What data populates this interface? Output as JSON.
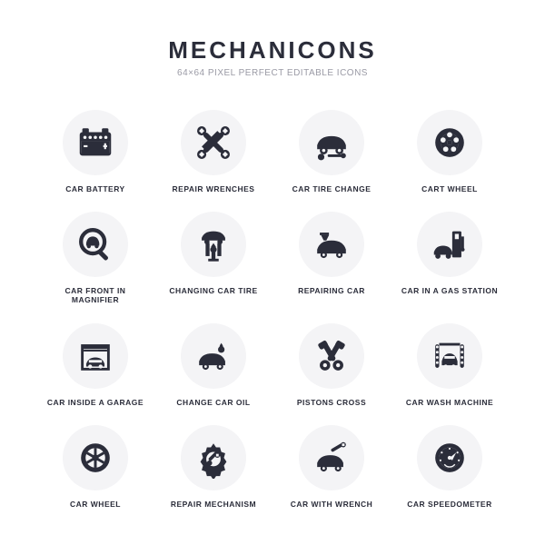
{
  "header": {
    "title": "MECHANICONS",
    "subtitle": "64×64 PIXEL PERFECT EDITABLE ICONS"
  },
  "palette": {
    "icon_color": "#2b2d3a",
    "circle_bg": "#f4f4f6",
    "text_color": "#2b2d3a",
    "subtitle_color": "#9a9aa5"
  },
  "grid": {
    "cols": 4,
    "rows": 4,
    "items": [
      {
        "id": "car-battery",
        "label": "CAR BATTERY"
      },
      {
        "id": "repair-wrenches",
        "label": "REPAIR WRENCHES"
      },
      {
        "id": "car-tire-change",
        "label": "CAR TIRE CHANGE"
      },
      {
        "id": "cart-wheel",
        "label": "CART WHEEL"
      },
      {
        "id": "car-front-in-magnifier",
        "label": "CAR FRONT IN MAGNIFIER"
      },
      {
        "id": "changing-car-tire",
        "label": "CHANGING CAR TIRE"
      },
      {
        "id": "repairing-car",
        "label": "REPAIRING CAR"
      },
      {
        "id": "car-in-a-gas-station",
        "label": "CAR IN A GAS STATION"
      },
      {
        "id": "car-inside-a-garage",
        "label": "CAR INSIDE A GARAGE"
      },
      {
        "id": "change-car-oil",
        "label": "CHANGE CAR OIL"
      },
      {
        "id": "pistons-cross",
        "label": "PISTONS CROSS"
      },
      {
        "id": "car-wash-machine",
        "label": "CAR WASH MACHINE"
      },
      {
        "id": "car-wheel",
        "label": "CAR WHEEL"
      },
      {
        "id": "repair-mechanism",
        "label": "REPAIR MECHANISM"
      },
      {
        "id": "car-with-wrench",
        "label": "CAR WITH WRENCH"
      },
      {
        "id": "car-speedometer",
        "label": "CAR SPEEDOMETER"
      }
    ]
  }
}
